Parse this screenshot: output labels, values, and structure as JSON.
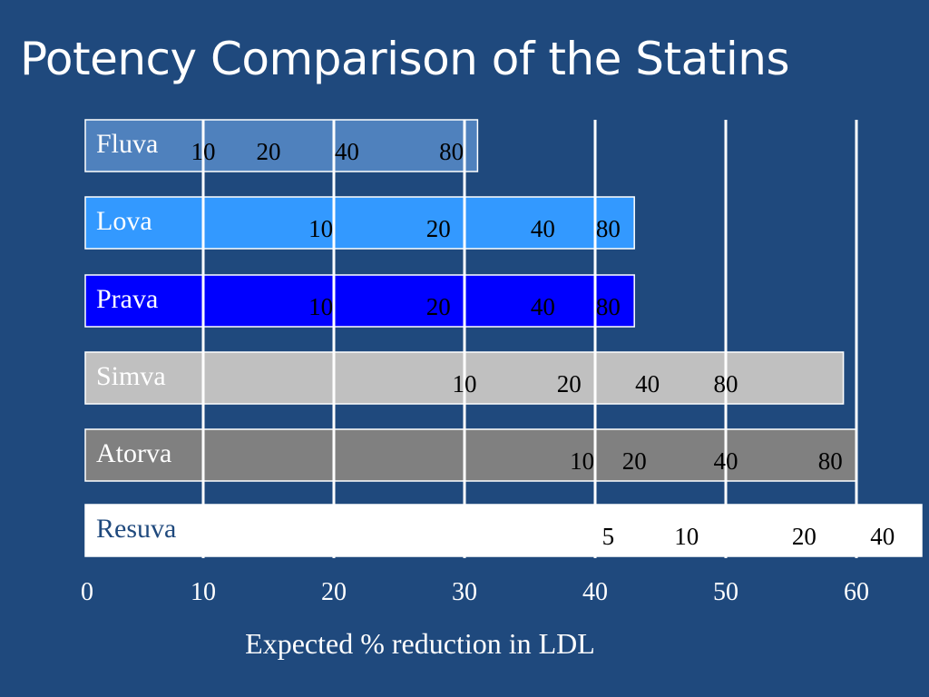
{
  "slide": {
    "title": "Potency Comparison of the Statins"
  },
  "colors": {
    "background": "#1f497d",
    "gridline": "#ffffff",
    "label_text": "#ffffff",
    "dose_text": "#000000"
  },
  "chart_data": {
    "type": "bar",
    "orientation": "horizontal",
    "title": "Potency Comparison of the Statins",
    "xlabel": "Expected % reduction in LDL",
    "ylabel": "",
    "xlim": [
      0,
      65
    ],
    "xticks": [
      0,
      10,
      20,
      30,
      40,
      50,
      60
    ],
    "gridlines_at": [
      10,
      20,
      30,
      40,
      50,
      60
    ],
    "bars": [
      {
        "name": "Fluva",
        "value": 31,
        "color": "#4f81bd",
        "text_color": "#ffffff",
        "doses": [
          {
            "label": "10",
            "reduction": 10
          },
          {
            "label": "20",
            "reduction": 15
          },
          {
            "label": "40",
            "reduction": 21
          },
          {
            "label": "80",
            "reduction": 29
          }
        ]
      },
      {
        "name": "Lova",
        "value": 43,
        "color": "#3399ff",
        "text_color": "#ffffff",
        "doses": [
          {
            "label": "10",
            "reduction": 19
          },
          {
            "label": "20",
            "reduction": 28
          },
          {
            "label": "40",
            "reduction": 36
          },
          {
            "label": "80",
            "reduction": 41
          }
        ]
      },
      {
        "name": "Prava",
        "value": 43,
        "color": "#0000ff",
        "text_color": "#ffffff",
        "doses": [
          {
            "label": "10",
            "reduction": 19
          },
          {
            "label": "20",
            "reduction": 28
          },
          {
            "label": "40",
            "reduction": 36
          },
          {
            "label": "80",
            "reduction": 41
          }
        ]
      },
      {
        "name": "Simva",
        "value": 59,
        "color": "#c0c0c0",
        "text_color": "#ffffff",
        "doses": [
          {
            "label": "10",
            "reduction": 30
          },
          {
            "label": "20",
            "reduction": 38
          },
          {
            "label": "40",
            "reduction": 44
          },
          {
            "label": "80",
            "reduction": 50
          }
        ]
      },
      {
        "name": "Atorva",
        "value": 60,
        "color": "#808080",
        "text_color": "#ffffff",
        "doses": [
          {
            "label": "10",
            "reduction": 39
          },
          {
            "label": "20",
            "reduction": 43
          },
          {
            "label": "40",
            "reduction": 50
          },
          {
            "label": "80",
            "reduction": 58
          }
        ]
      },
      {
        "name": "Resuva",
        "value": 65,
        "color": "#ffffff",
        "text_color": "#1f497d",
        "doses": [
          {
            "label": "5",
            "reduction": 41
          },
          {
            "label": "10",
            "reduction": 47
          },
          {
            "label": "20",
            "reduction": 56
          },
          {
            "label": "40",
            "reduction": 62
          }
        ]
      }
    ]
  }
}
